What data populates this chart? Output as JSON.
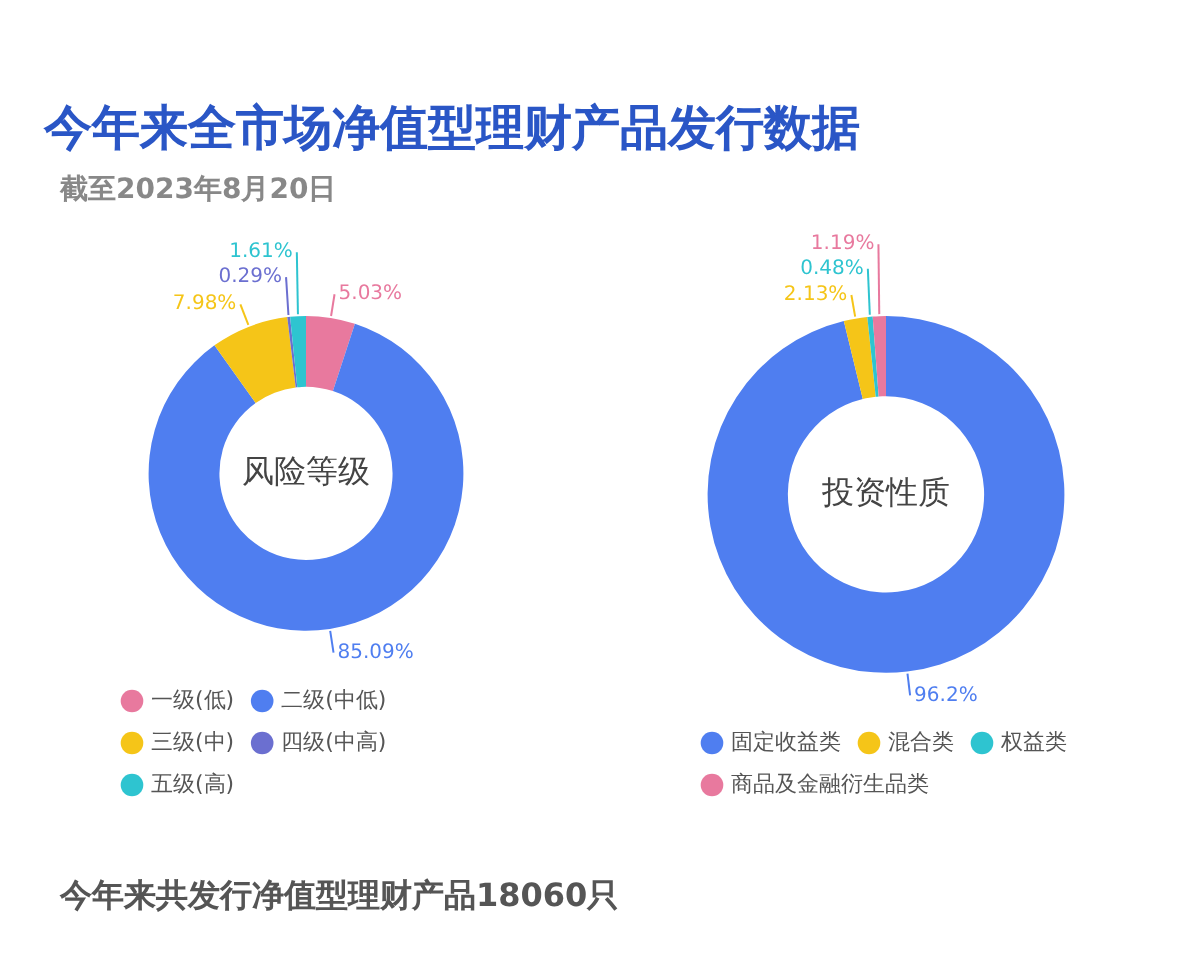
{
  "chart_data": [
    {
      "type": "donut",
      "title": "今年来全市场净值型理财产品发行数据",
      "subtitle": "截至2023年8月20日",
      "categories": [
        "一级(低)",
        "二级(中低)",
        "三级(中)",
        "四级(中高)",
        "五级(高)"
      ],
      "values": [
        5.03,
        85.09,
        7.98,
        0.29,
        1.61
      ],
      "colors": [
        "#e8799e",
        "#4f7ef0",
        "#f5c518",
        "#6b6fd0",
        "#2ec4d0"
      ],
      "value_labels": [
        "5.03%",
        "85.09%",
        "7.98%",
        "0.29%",
        "1.61%"
      ],
      "legend": "bottom",
      "annotations": [
        "风险等级",
        "今年来共发行净值型理财产品18060只"
      ]
    },
    {
      "type": "donut",
      "categories": [
        "固定收益类",
        "混合类",
        "权益类",
        "商品及金融衍生品类"
      ],
      "values": [
        96.2,
        2.13,
        0.48,
        1.19
      ],
      "colors": [
        "#4f7ef0",
        "#f5c518",
        "#2ec4d0",
        "#e8799e"
      ],
      "value_labels": [
        "96.2%",
        "2.13%",
        "0.48%",
        "1.19%"
      ],
      "legend": "bottom",
      "annotations": [
        "投资性质"
      ]
    }
  ]
}
